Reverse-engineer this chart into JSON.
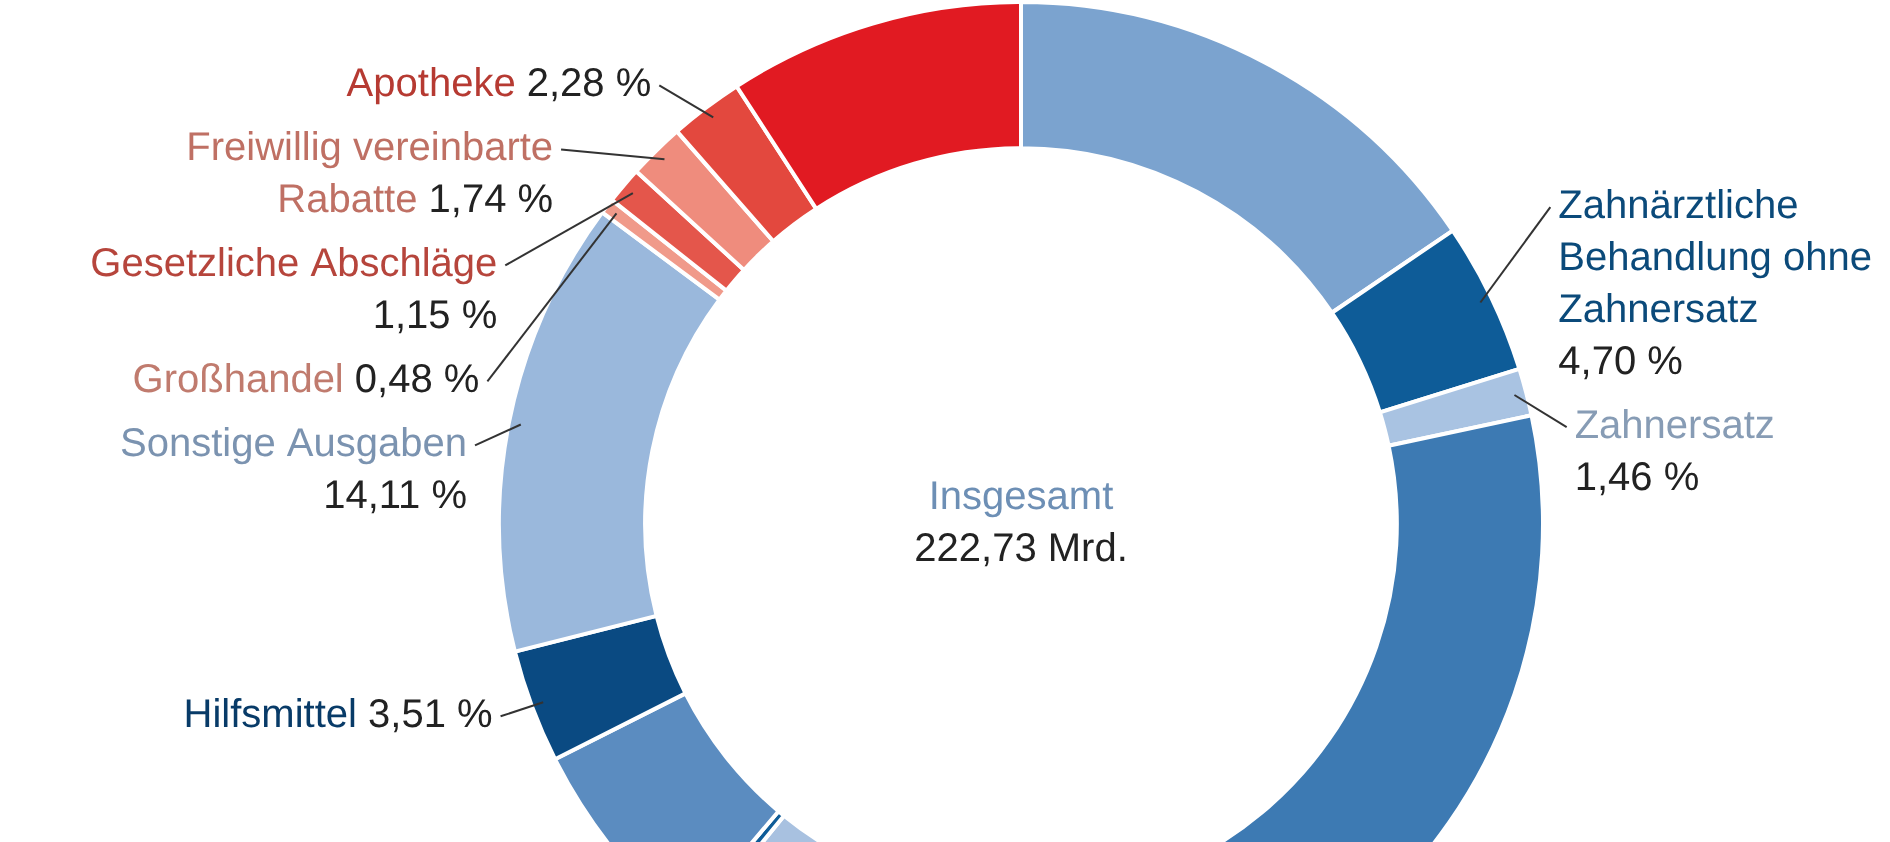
{
  "chart_data": {
    "type": "donut",
    "categories": [
      null,
      "Zahnärztliche Behandlung ohne Zahnersatz",
      "Zahnersatz",
      null,
      null,
      null,
      null,
      "Hilfsmittel",
      "Sonstige Ausgaben",
      "Großhandel",
      "Gesetzliche Abschläge",
      "Freiwillig vereinbarte Rabatte",
      "Apotheke",
      null
    ],
    "values": [
      15.5,
      4.7,
      1.46,
      34.5,
      4.7,
      0.3,
      6.4,
      3.51,
      14.11,
      0.48,
      1.15,
      1.74,
      2.28,
      9.17
    ],
    "value_labels": [
      null,
      "4,70 %",
      "1,46 %",
      null,
      null,
      null,
      null,
      "3,51 %",
      "14,11 %",
      "0,48 %",
      "1,15 %",
      "1,74 %",
      "2,28 %",
      null
    ],
    "colors": [
      "#7ba3cf",
      "#0e5c98",
      "#a9c3e2",
      "#3d7ab3",
      "#a8c1e0",
      "#0e5c98",
      "#5b8cc0",
      "#0a4a82",
      "#9ab8dc",
      "#f09a8a",
      "#e4564b",
      "#ef8c7d",
      "#e3483e",
      "#e11a22"
    ],
    "annotations": [
      "Insgesamt",
      "222,73 Mrd."
    ]
  }
}
